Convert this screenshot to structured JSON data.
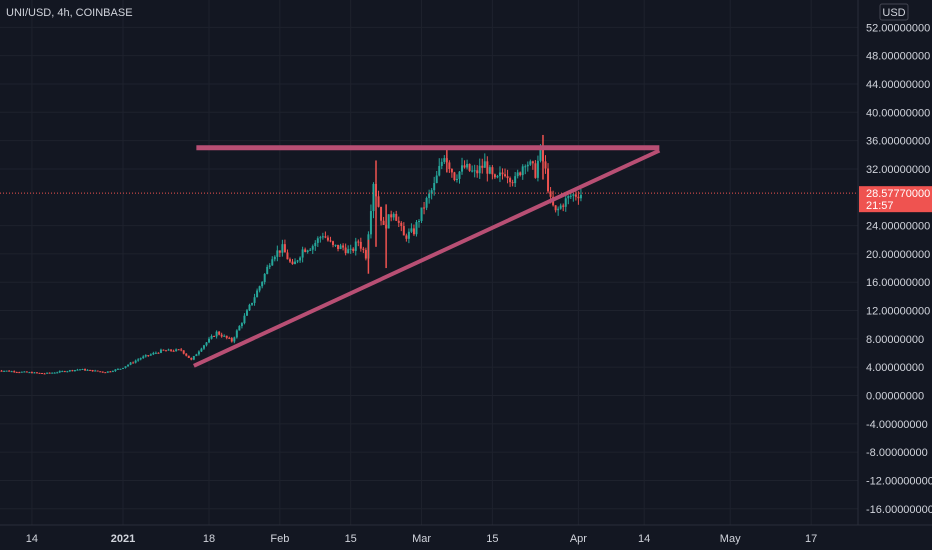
{
  "header": {
    "symbol_title": "UNI/USD, 4h, COINBASE"
  },
  "currency_button": {
    "label": "USD"
  },
  "price_badge": {
    "price": "28.57770000",
    "countdown": "21:57"
  },
  "colors": {
    "background": "#131722",
    "grid": "#1e222d",
    "up_candle": "#26a69a",
    "down_candle": "#ef5350",
    "pattern_line": "#b84f74",
    "price_badge": "#ef5350"
  },
  "chart_data": {
    "type": "candlestick",
    "symbol": "UNI/USD",
    "interval": "4h",
    "exchange": "COINBASE",
    "current_price": 28.5777,
    "ylim": [
      -17.5,
      54
    ],
    "y_ticks": [
      {
        "value": 52,
        "label": "52.00000000"
      },
      {
        "value": 48,
        "label": "48.00000000"
      },
      {
        "value": 44,
        "label": "44.00000000"
      },
      {
        "value": 40,
        "label": "40.00000000"
      },
      {
        "value": 36,
        "label": "36.00000000"
      },
      {
        "value": 32,
        "label": "32.00000000"
      },
      {
        "value": 24,
        "label": "24.00000000"
      },
      {
        "value": 20,
        "label": "20.00000000"
      },
      {
        "value": 16,
        "label": "16.00000000"
      },
      {
        "value": 12,
        "label": "12.00000000"
      },
      {
        "value": 8,
        "label": "8.00000000"
      },
      {
        "value": 4,
        "label": "4.00000000"
      },
      {
        "value": 0,
        "label": "0.00000000"
      },
      {
        "value": -4,
        "label": "-4.00000000"
      },
      {
        "value": -8,
        "label": "-8.00000000"
      },
      {
        "value": -12,
        "label": "-12.00000000"
      },
      {
        "value": -16,
        "label": "-16.00000000"
      }
    ],
    "x_ticks": [
      {
        "day": -18,
        "label": "14",
        "bold": false
      },
      {
        "day": 0,
        "label": "2021",
        "bold": true
      },
      {
        "day": 17,
        "label": "18",
        "bold": false
      },
      {
        "day": 31,
        "label": "Feb",
        "bold": false
      },
      {
        "day": 45,
        "label": "15",
        "bold": false
      },
      {
        "day": 59,
        "label": "Mar",
        "bold": false
      },
      {
        "day": 73,
        "label": "15",
        "bold": false
      },
      {
        "day": 90,
        "label": "Apr",
        "bold": false
      },
      {
        "day": 103,
        "label": "14",
        "bold": false
      },
      {
        "day": 120,
        "label": "May",
        "bold": false
      },
      {
        "day": 136,
        "label": "17",
        "bold": false
      }
    ],
    "xlim": [
      -25,
      150
    ],
    "price_path": [
      [
        -25,
        3.6
      ],
      [
        -15,
        3.1
      ],
      [
        -8,
        3.7
      ],
      [
        -3,
        3.3
      ],
      [
        0,
        3.8
      ],
      [
        4,
        5.3
      ],
      [
        8,
        6.3
      ],
      [
        12,
        6.4
      ],
      [
        14,
        5.0
      ],
      [
        16,
        6.8
      ],
      [
        19,
        8.9
      ],
      [
        22,
        7.7
      ],
      [
        25,
        11.8
      ],
      [
        28,
        16.2
      ],
      [
        30,
        19.8
      ],
      [
        32,
        20.8
      ],
      [
        34,
        18.1
      ],
      [
        36,
        20.6
      ],
      [
        38,
        21.2
      ],
      [
        40,
        22.8
      ],
      [
        42,
        21.0
      ],
      [
        44,
        20.9
      ],
      [
        45.5,
        20.2
      ],
      [
        47,
        21.8
      ],
      [
        48.5,
        19.8
      ],
      [
        50,
        30.3
      ],
      [
        51,
        26.8
      ],
      [
        52,
        23.6
      ],
      [
        54,
        26.2
      ],
      [
        56,
        22.4
      ],
      [
        58,
        23.2
      ],
      [
        60,
        26.8
      ],
      [
        62,
        29.6
      ],
      [
        64,
        34.2
      ],
      [
        66,
        31.0
      ],
      [
        68,
        32.2
      ],
      [
        70,
        31.3
      ],
      [
        72,
        32.7
      ],
      [
        74,
        30.1
      ],
      [
        76,
        31.7
      ],
      [
        78,
        30.3
      ],
      [
        80,
        33.3
      ],
      [
        82,
        31.5
      ],
      [
        83,
        34.5
      ],
      [
        84,
        31.6
      ],
      [
        85,
        27.4
      ],
      [
        86,
        25.8
      ],
      [
        87.5,
        27.2
      ],
      [
        89,
        28.2
      ],
      [
        90.5,
        28.5
      ]
    ],
    "spikes": [
      {
        "day": 50,
        "high": 33.2,
        "low": 21.0
      },
      {
        "day": 52,
        "high": 27.0,
        "low": 18.0
      },
      {
        "day": 64,
        "high": 35.1,
        "low": 31.5
      },
      {
        "day": 83,
        "high": 36.8,
        "low": 30.5
      },
      {
        "day": 48.5,
        "high": 22.0,
        "low": 17.2
      }
    ],
    "drawings": [
      {
        "type": "horizontal-resistance",
        "from": [
          14.5,
          35.0
        ],
        "to": [
          106,
          35.0
        ]
      },
      {
        "type": "ascending-trendline",
        "from": [
          14,
          4.2
        ],
        "to": [
          106,
          34.6
        ]
      }
    ]
  }
}
